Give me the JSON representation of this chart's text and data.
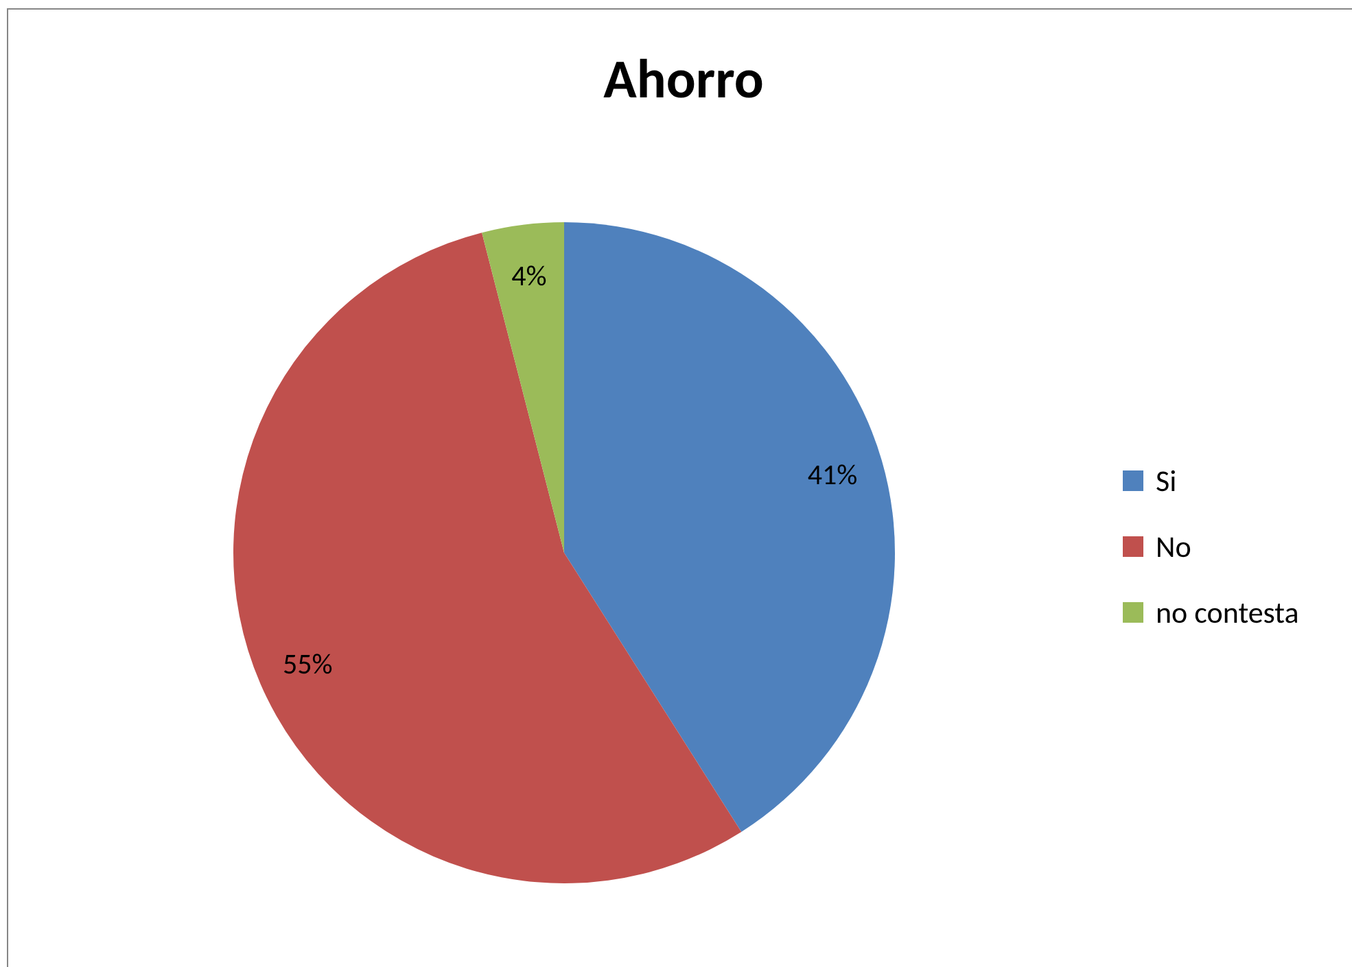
{
  "chart_data": {
    "type": "pie",
    "title": "Ahorro",
    "categories": [
      "Si",
      "No",
      "no contesta"
    ],
    "values": [
      41,
      55,
      4
    ],
    "colors": [
      "#4f81bd",
      "#c0504d",
      "#9bbb59"
    ],
    "value_labels": [
      "41%",
      "55%",
      "4%"
    ],
    "legend": "right"
  }
}
